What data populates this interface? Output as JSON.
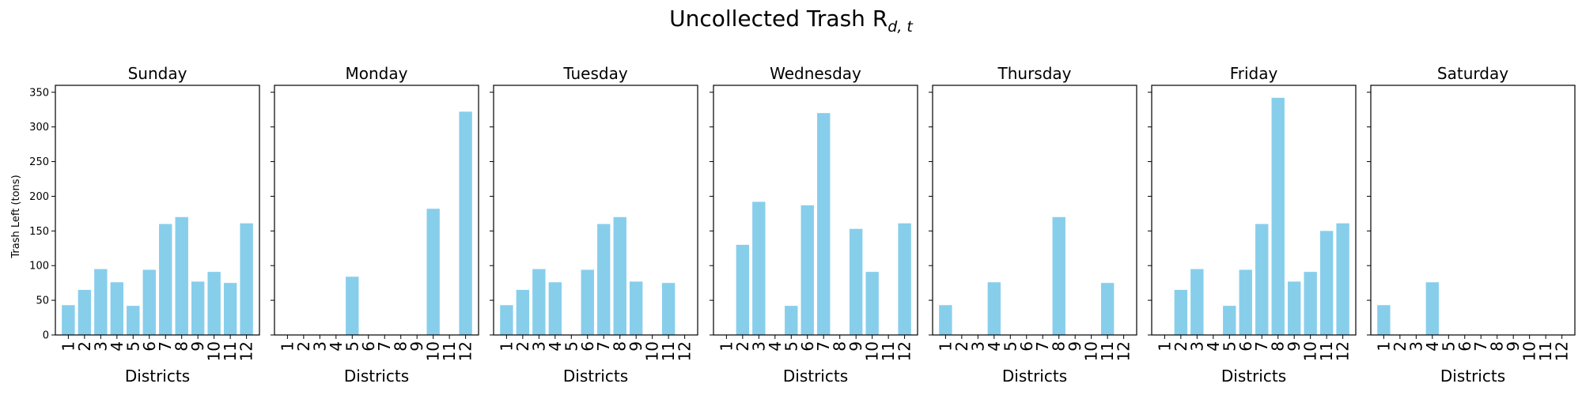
{
  "figure": {
    "title": "Uncollected Trash R",
    "title_sub": "d, t"
  },
  "chart_data": {
    "type": "bar",
    "ylabel": "Trash Left (tons)",
    "xlabel": "Districts",
    "ylim": [
      0,
      360
    ],
    "yticks": [
      0,
      50,
      100,
      150,
      200,
      250,
      300,
      350
    ],
    "bar_color": "#87ceeb",
    "categories": [
      "1",
      "2",
      "3",
      "4",
      "5",
      "6",
      "7",
      "8",
      "9",
      "10",
      "11",
      "12"
    ],
    "panels": [
      {
        "title": "Sunday",
        "values": [
          43,
          65,
          95,
          76,
          42,
          94,
          160,
          170,
          77,
          91,
          75,
          161
        ]
      },
      {
        "title": "Monday",
        "values": [
          0,
          0,
          0,
          0,
          84,
          0,
          0,
          0,
          0,
          182,
          0,
          322
        ]
      },
      {
        "title": "Tuesday",
        "values": [
          43,
          65,
          95,
          76,
          0,
          94,
          160,
          170,
          77,
          0,
          75,
          0
        ]
      },
      {
        "title": "Wednesday",
        "values": [
          0,
          130,
          192,
          0,
          42,
          187,
          320,
          0,
          153,
          91,
          0,
          161
        ]
      },
      {
        "title": "Thursday",
        "values": [
          43,
          0,
          0,
          76,
          0,
          0,
          0,
          170,
          0,
          0,
          75,
          0
        ]
      },
      {
        "title": "Friday",
        "values": [
          0,
          65,
          95,
          0,
          42,
          94,
          160,
          342,
          77,
          91,
          150,
          161
        ]
      },
      {
        "title": "Saturday",
        "values": [
          43,
          0,
          0,
          76,
          0,
          0,
          0,
          0,
          0,
          0,
          0,
          0
        ]
      }
    ]
  }
}
